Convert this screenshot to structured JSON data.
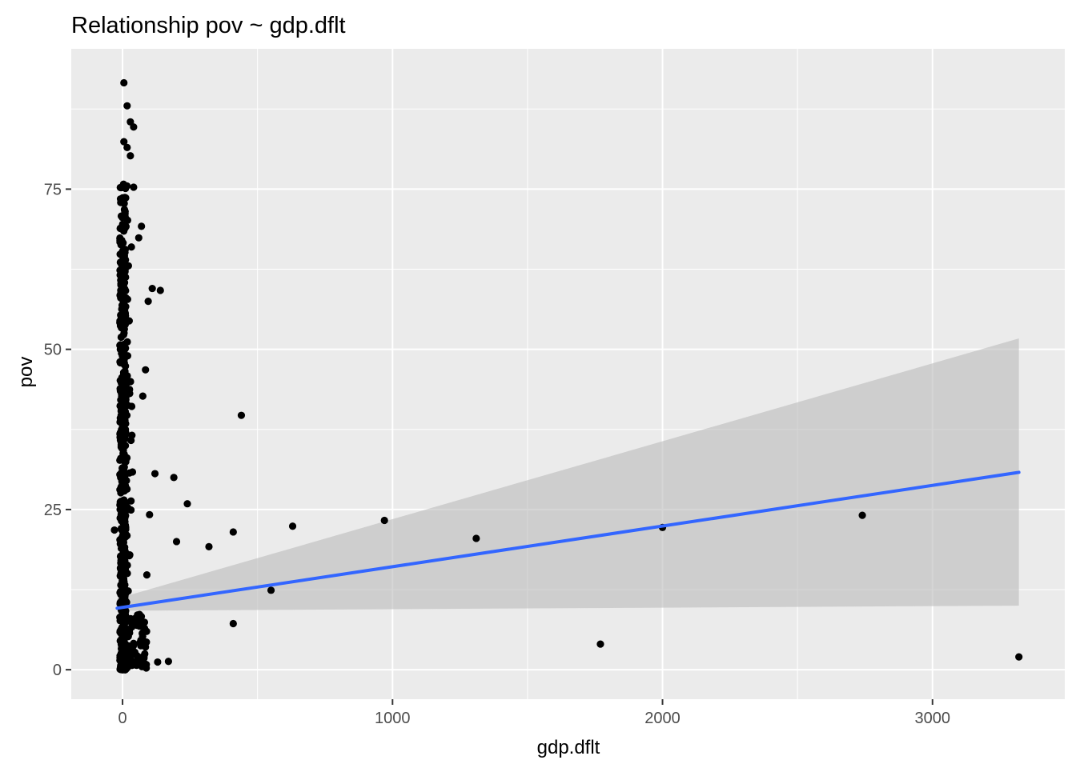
{
  "chart_data": {
    "type": "scatter",
    "title": "Relationship pov ~ gdp.dflt",
    "xlabel": "gdp.dflt",
    "ylabel": "pov",
    "xlim": [
      -190,
      3490
    ],
    "ylim": [
      -4.6,
      96.9
    ],
    "x_ticks": [
      0,
      1000,
      2000,
      3000
    ],
    "x_tick_labels": [
      "0",
      "1000",
      "2000",
      "3000"
    ],
    "y_ticks": [
      0,
      25,
      50,
      75
    ],
    "y_tick_labels": [
      "0",
      "25",
      "50",
      "75"
    ],
    "grid": true,
    "colors": {
      "panel_bg": "#ebebeb",
      "grid_major": "#ffffff",
      "point": "#000000",
      "fit_line": "#3366ff",
      "ribbon": "#bdbdbd"
    },
    "smooth": {
      "method": "lm",
      "line": {
        "x": [
          -20,
          3320
        ],
        "y": [
          9.6,
          30.8
        ]
      },
      "ribbon": {
        "x": [
          -20,
          3320
        ],
        "upper": [
          11.1,
          51.7
        ],
        "lower": [
          9.2,
          10.0
        ]
      }
    },
    "outliers": {
      "x": [
        -30,
        120,
        130,
        170,
        140,
        95,
        190,
        200,
        240,
        320,
        410,
        440,
        410,
        550,
        630,
        970,
        1310,
        1770,
        2000,
        2740,
        3320,
        85,
        75,
        60,
        70,
        100,
        110,
        90
      ],
      "y": [
        21.8,
        30.6,
        1.2,
        1.3,
        59.2,
        57.5,
        30.0,
        20.0,
        25.9,
        19.2,
        21.5,
        39.7,
        7.2,
        12.4,
        22.4,
        23.3,
        20.5,
        4.0,
        22.2,
        24.1,
        2.0,
        46.8,
        42.7,
        67.4,
        69.2,
        24.2,
        59.5,
        14.8
      ]
    },
    "cluster": {
      "x_range": [
        -10,
        60
      ],
      "y_max": [
        91.6,
        88.0,
        85.5,
        84.7,
        82.4,
        81.5,
        80.2,
        75.3
      ]
    }
  }
}
